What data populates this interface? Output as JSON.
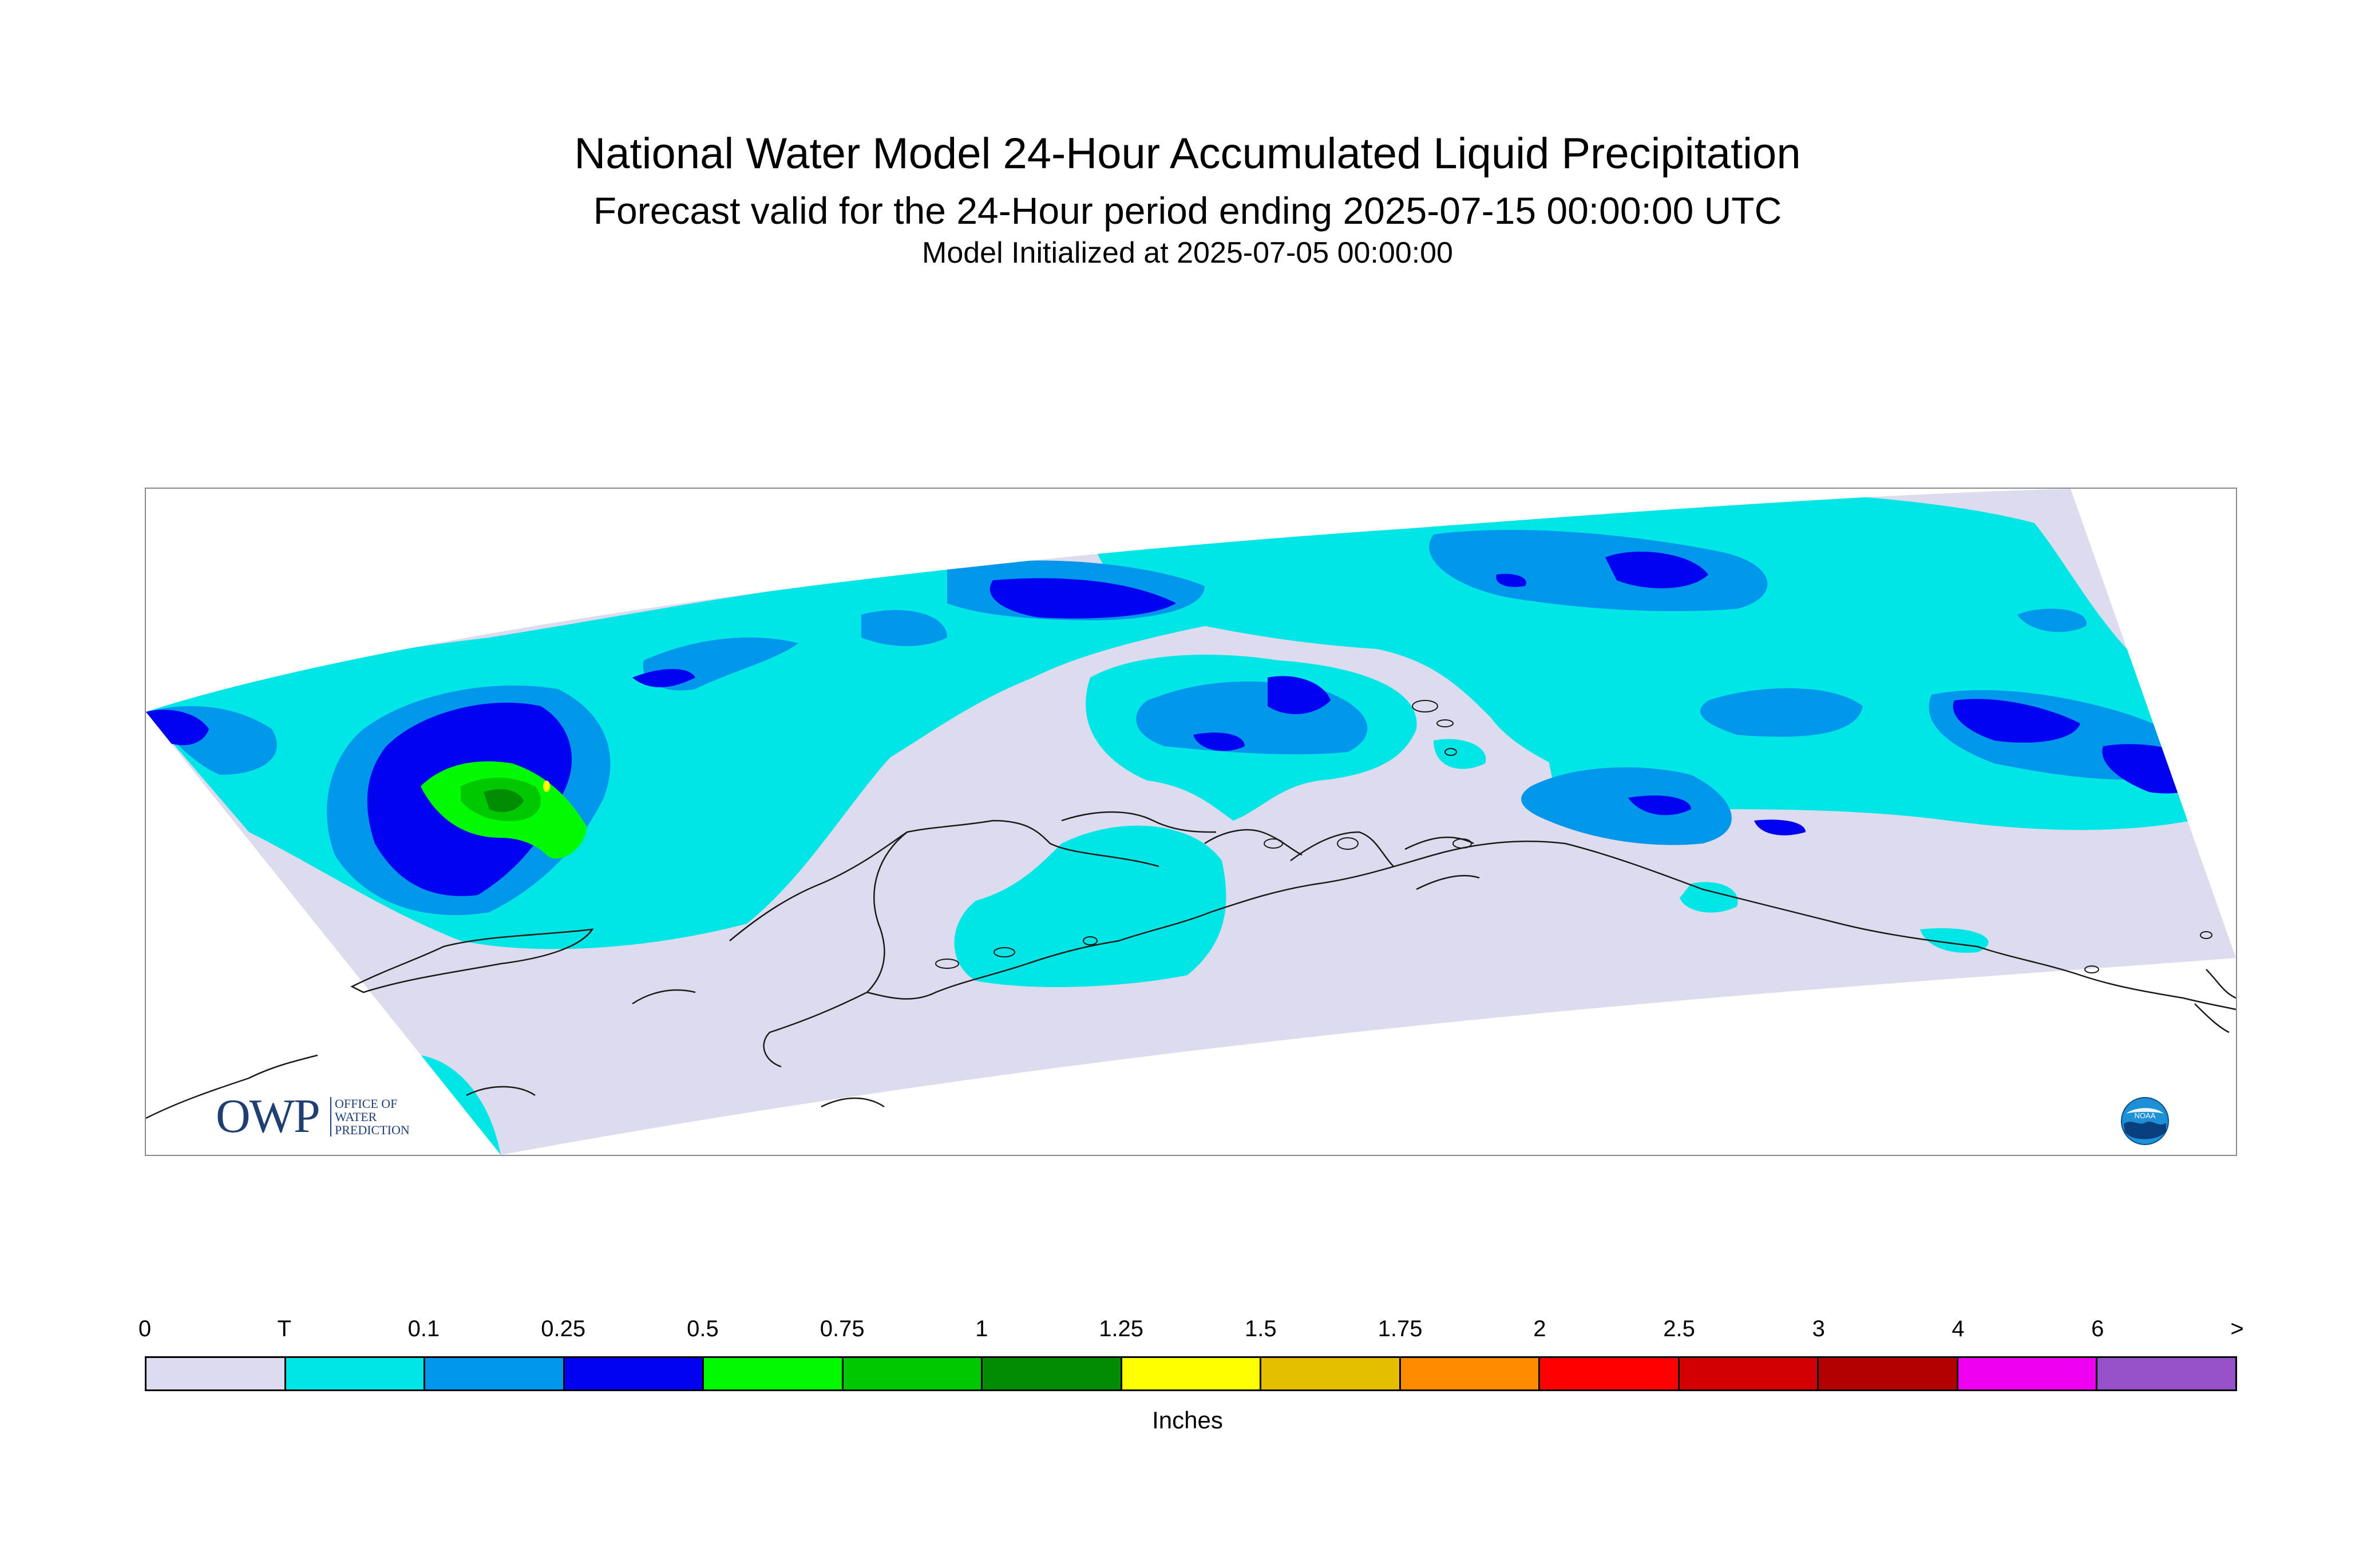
{
  "title": "National Water Model 24-Hour Accumulated Liquid Precipitation",
  "subtitle": "Forecast valid for the 24-Hour period ending 2025-07-15 00:00:00 UTC",
  "init_line": "Model Initialized at 2025-07-05 00:00:00",
  "logos": {
    "owp_letters": "OWP",
    "owp_line1": "OFFICE OF",
    "owp_line2": "WATER",
    "owp_line3": "PREDICTION",
    "noaa": "NOAA"
  },
  "legend": {
    "units": "Inches",
    "ticks": [
      "0",
      "T",
      "0.1",
      "0.25",
      "0.5",
      "0.75",
      "1",
      "1.25",
      "1.5",
      "1.75",
      "2",
      "2.5",
      "3",
      "4",
      "6",
      ">"
    ],
    "colors": [
      "#dcdcee",
      "#00e5e5",
      "#0096ec",
      "#0000f0",
      "#00fa00",
      "#00c800",
      "#008c00",
      "#ffff00",
      "#e6be00",
      "#ff8c00",
      "#ff0000",
      "#d20000",
      "#b40000",
      "#f000f0",
      "#9650c8"
    ]
  },
  "map": {
    "background_color": "#dcdcee",
    "coastline_color": "#1a1a1a"
  }
}
